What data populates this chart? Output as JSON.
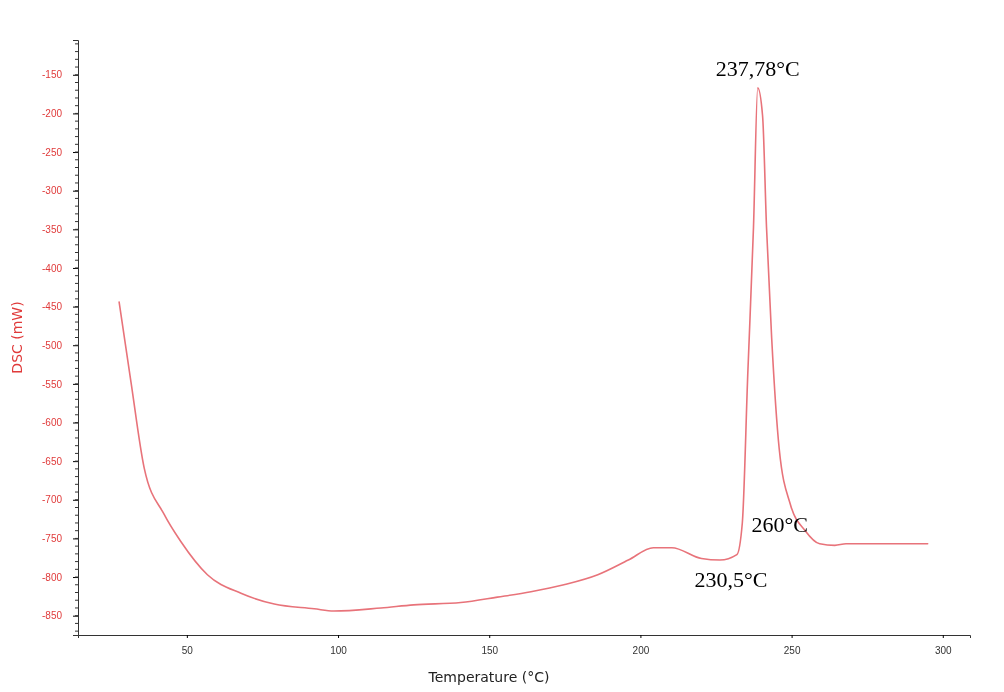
{
  "chart_data": {
    "type": "line",
    "xlabel": "Temperature (°C)",
    "ylabel": "DSC (mW)",
    "xlim": [
      14,
      309
    ],
    "xticks": [
      50,
      100,
      150,
      200,
      250,
      300
    ],
    "ylim": [
      -875,
      -105
    ],
    "yticks": [
      -150,
      -200,
      -250,
      -300,
      -350,
      -400,
      -450,
      -500,
      -550,
      -600,
      -650,
      -700,
      -750,
      -800,
      -850
    ],
    "grid": false,
    "marker": "none",
    "line_style": "solid",
    "series": [
      {
        "color": "#e8737a",
        "x": [
          27.6,
          31.5,
          35.9,
          42.5,
          48,
          56.8,
          67.9,
          78.9,
          92.1,
          98.6,
          114.2,
          125,
          140.6,
          152.7,
          163.8,
          174.7,
          185.9,
          196,
          204.3,
          210.4,
          220.2,
          226.3,
          231.9,
          233.7,
          235.5,
          237.4,
          238.8,
          240.4,
          241.7,
          243.4,
          245.9,
          249.6,
          254.5,
          259.3,
          264.3,
          268,
          295
        ],
        "values": [
          -444,
          -547,
          -659,
          -719,
          -754,
          -797,
          -821,
          -835,
          -841,
          -844,
          -840,
          -836,
          -833,
          -826,
          -819,
          -810,
          -797,
          -778,
          -762,
          -762,
          -776,
          -778,
          -771,
          -730,
          -538,
          -347,
          -167,
          -203,
          -347,
          -490,
          -634,
          -706,
          -740,
          -757,
          -759,
          -757,
          -757
        ]
      }
    ],
    "annotations": [
      {
        "text": "237,78°C",
        "x": 238.8,
        "y": -167
      },
      {
        "text": "230,5°C",
        "x": 231.9,
        "y": -771
      },
      {
        "text": "260°C",
        "x": 259.3,
        "y": -757
      }
    ]
  }
}
